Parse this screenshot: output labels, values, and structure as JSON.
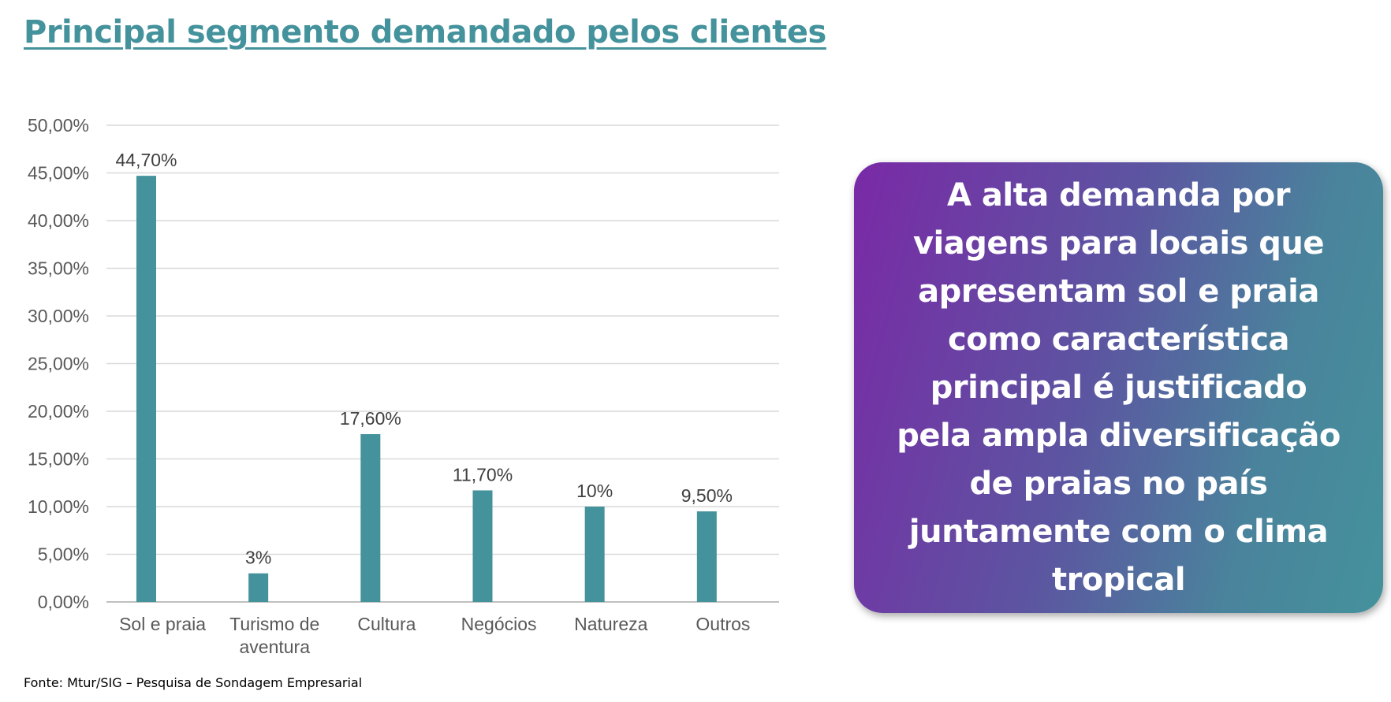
{
  "title": "Principal segmento demandado pelos clientes",
  "source": "Fonte: Mtur/SIG – Pesquisa de Sondagem Empresarial",
  "callout": {
    "text": "A alta demanda por viagens para locais que apresentam sol e praia como característica principal é justificado pela ampla diversificação de praias no país juntamente com o clima tropical"
  },
  "colors": {
    "accent": "#44929c",
    "bar": "#44929c",
    "gradient_start": "#7a29a6",
    "gradient_end": "#44929c"
  },
  "chart_data": {
    "type": "bar",
    "categories": [
      [
        "Sol e praia"
      ],
      [
        "Turismo de",
        "aventura"
      ],
      [
        "Cultura"
      ],
      [
        "Negócios"
      ],
      [
        "Natureza"
      ],
      [
        "Outros"
      ]
    ],
    "values": [
      44.7,
      3,
      17.6,
      11.7,
      10,
      9.5
    ],
    "data_labels": [
      "44,70%",
      "3%",
      "17,60%",
      "11,70%",
      "10%",
      "9,50%"
    ],
    "yticks": [
      "0,00%",
      "5,00%",
      "10,00%",
      "15,00%",
      "20,00%",
      "25,00%",
      "30,00%",
      "35,00%",
      "40,00%",
      "45,00%",
      "50,00%"
    ],
    "ylim": [
      0,
      50
    ],
    "grid": true,
    "legend": "none"
  }
}
